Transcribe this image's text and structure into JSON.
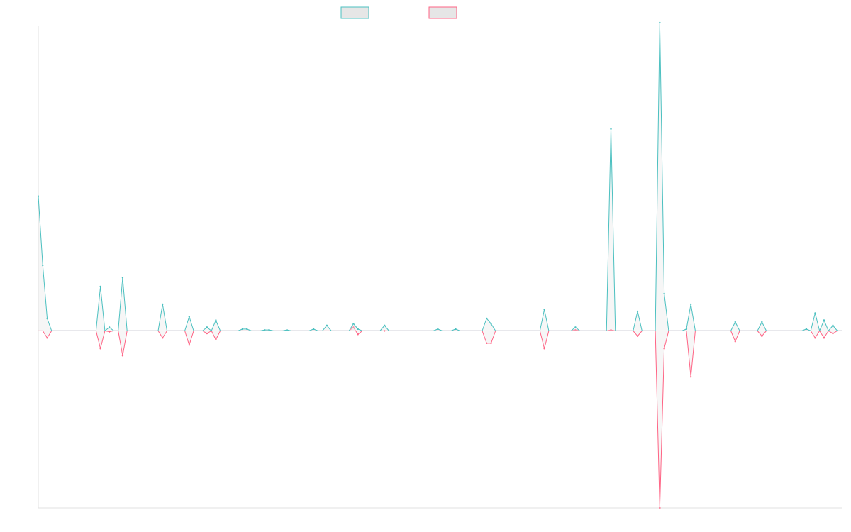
{
  "chart_data": {
    "type": "line",
    "title": "",
    "xlabel": "",
    "ylabel": "",
    "ylim": [
      -1.0,
      1.72
    ],
    "xlim": [
      0,
      181
    ],
    "grid": false,
    "legend": {
      "placement": "top-center",
      "entries": [
        "",
        ""
      ]
    },
    "x_step": 1,
    "series": [
      {
        "name": "",
        "color": "#4bc0c0",
        "fill": "#e6e6e6",
        "points": [
          [
            0,
            0.76
          ],
          [
            1,
            0.37
          ],
          [
            2,
            0.07
          ],
          [
            14,
            0.25
          ],
          [
            16,
            0.02
          ],
          [
            19,
            0.3
          ],
          [
            28,
            0.15
          ],
          [
            34,
            0.08
          ],
          [
            38,
            0.02
          ],
          [
            40,
            0.06
          ],
          [
            46,
            0.01
          ],
          [
            47,
            0.01
          ],
          [
            51,
            0.005
          ],
          [
            52,
            0.005
          ],
          [
            56,
            0.005
          ],
          [
            62,
            0.01
          ],
          [
            65,
            0.03
          ],
          [
            71,
            0.04
          ],
          [
            72,
            0.01
          ],
          [
            78,
            0.03
          ],
          [
            90,
            0.01
          ],
          [
            94,
            0.01
          ],
          [
            101,
            0.07
          ],
          [
            102,
            0.04
          ],
          [
            114,
            0.12
          ],
          [
            121,
            0.02
          ],
          [
            129,
            1.14
          ],
          [
            135,
            0.11
          ],
          [
            140,
            1.74
          ],
          [
            141,
            0.21
          ],
          [
            146,
            0.01
          ],
          [
            147,
            0.15
          ],
          [
            157,
            0.05
          ],
          [
            163,
            0.05
          ],
          [
            173,
            0.01
          ],
          [
            175,
            0.1
          ],
          [
            177,
            0.06
          ],
          [
            179,
            0.03
          ]
        ]
      },
      {
        "name": "",
        "color": "#ff6384",
        "fill": "#e6e6e6",
        "points": [
          [
            2,
            -0.04
          ],
          [
            14,
            -0.1
          ],
          [
            16,
            -0.005
          ],
          [
            19,
            -0.14
          ],
          [
            28,
            -0.04
          ],
          [
            34,
            -0.08
          ],
          [
            38,
            -0.015
          ],
          [
            40,
            -0.05
          ],
          [
            71,
            0.02
          ],
          [
            72,
            -0.02
          ],
          [
            78,
            0.0
          ],
          [
            101,
            -0.07
          ],
          [
            102,
            -0.07
          ],
          [
            114,
            -0.1
          ],
          [
            121,
            0.005
          ],
          [
            129,
            0.005
          ],
          [
            135,
            -0.03
          ],
          [
            140,
            -1.0
          ],
          [
            141,
            -0.1
          ],
          [
            147,
            -0.26
          ],
          [
            157,
            -0.06
          ],
          [
            163,
            -0.03
          ],
          [
            175,
            -0.04
          ],
          [
            177,
            -0.04
          ],
          [
            179,
            -0.015
          ]
        ]
      }
    ]
  }
}
